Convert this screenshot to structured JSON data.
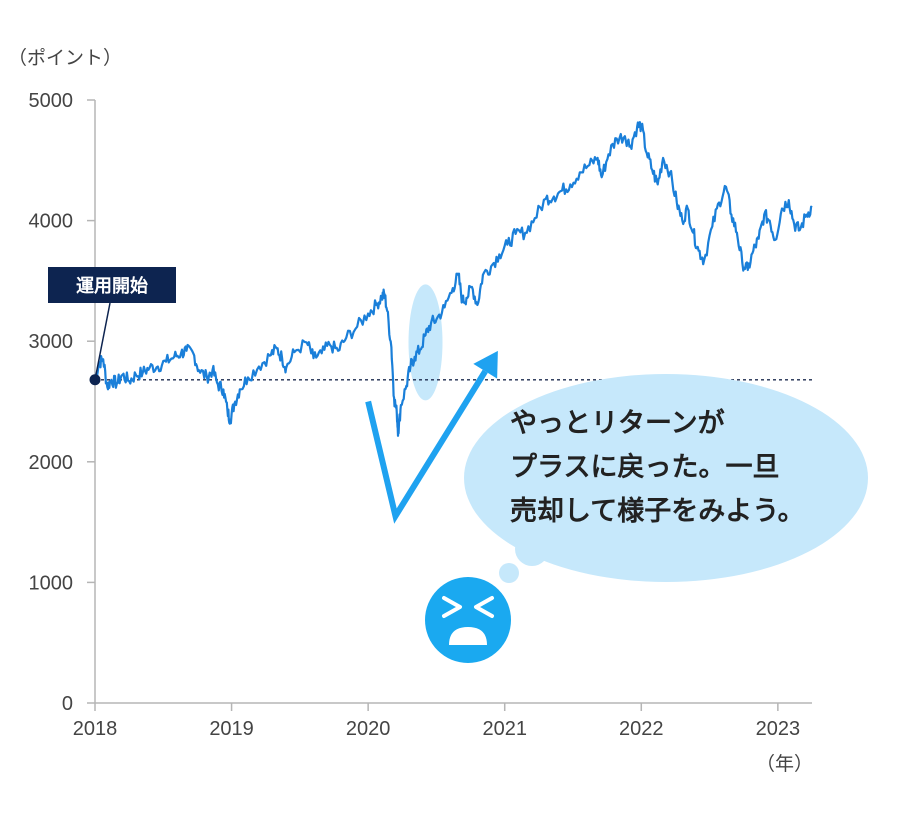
{
  "chart_data": {
    "type": "line",
    "y_unit": "（ポイント）",
    "x_unit": "（年）",
    "ylim": [
      0,
      5000
    ],
    "xlim": [
      2018.0,
      2023.25
    ],
    "y_ticks": [
      "0",
      "1000",
      "2000",
      "3000",
      "4000",
      "5000"
    ],
    "x_ticks": [
      "2018",
      "2019",
      "2020",
      "2021",
      "2022",
      "2023"
    ],
    "grid": false,
    "series": [
      {
        "color": "#1a7fd9",
        "points": [
          [
            2018.0,
            2680
          ],
          [
            2018.03,
            2820
          ],
          [
            2018.06,
            2850
          ],
          [
            2018.09,
            2620
          ],
          [
            2018.12,
            2680
          ],
          [
            2018.16,
            2650
          ],
          [
            2018.2,
            2720
          ],
          [
            2018.25,
            2670
          ],
          [
            2018.3,
            2720
          ],
          [
            2018.35,
            2740
          ],
          [
            2018.4,
            2780
          ],
          [
            2018.46,
            2790
          ],
          [
            2018.52,
            2830
          ],
          [
            2018.58,
            2870
          ],
          [
            2018.63,
            2900
          ],
          [
            2018.67,
            2920
          ],
          [
            2018.72,
            2900
          ],
          [
            2018.76,
            2760
          ],
          [
            2018.82,
            2700
          ],
          [
            2018.86,
            2760
          ],
          [
            2018.9,
            2640
          ],
          [
            2018.94,
            2600
          ],
          [
            2018.97,
            2420
          ],
          [
            2018.99,
            2350
          ],
          [
            2019.02,
            2480
          ],
          [
            2019.06,
            2600
          ],
          [
            2019.12,
            2700
          ],
          [
            2019.2,
            2790
          ],
          [
            2019.28,
            2880
          ],
          [
            2019.33,
            2940
          ],
          [
            2019.37,
            2860
          ],
          [
            2019.4,
            2780
          ],
          [
            2019.46,
            2910
          ],
          [
            2019.55,
            2990
          ],
          [
            2019.6,
            2860
          ],
          [
            2019.66,
            2900
          ],
          [
            2019.72,
            2970
          ],
          [
            2019.78,
            2920
          ],
          [
            2019.84,
            3030
          ],
          [
            2019.92,
            3120
          ],
          [
            2020.0,
            3230
          ],
          [
            2020.06,
            3300
          ],
          [
            2020.1,
            3370
          ],
          [
            2020.12,
            3390
          ],
          [
            2020.14,
            3250
          ],
          [
            2020.17,
            2950
          ],
          [
            2020.19,
            2530
          ],
          [
            2020.21,
            2400
          ],
          [
            2020.22,
            2240
          ],
          [
            2020.24,
            2470
          ],
          [
            2020.28,
            2630
          ],
          [
            2020.31,
            2790
          ],
          [
            2020.34,
            2870
          ],
          [
            2020.38,
            2930
          ],
          [
            2020.42,
            3050
          ],
          [
            2020.46,
            3150
          ],
          [
            2020.5,
            3180
          ],
          [
            2020.56,
            3280
          ],
          [
            2020.62,
            3440
          ],
          [
            2020.66,
            3550
          ],
          [
            2020.69,
            3330
          ],
          [
            2020.72,
            3360
          ],
          [
            2020.76,
            3450
          ],
          [
            2020.8,
            3300
          ],
          [
            2020.84,
            3550
          ],
          [
            2020.9,
            3620
          ],
          [
            2020.96,
            3720
          ],
          [
            2021.02,
            3800
          ],
          [
            2021.08,
            3890
          ],
          [
            2021.15,
            3900
          ],
          [
            2021.22,
            4020
          ],
          [
            2021.3,
            4180
          ],
          [
            2021.36,
            4200
          ],
          [
            2021.42,
            4250
          ],
          [
            2021.48,
            4300
          ],
          [
            2021.55,
            4400
          ],
          [
            2021.62,
            4460
          ],
          [
            2021.68,
            4520
          ],
          [
            2021.71,
            4360
          ],
          [
            2021.76,
            4550
          ],
          [
            2021.82,
            4680
          ],
          [
            2021.88,
            4700
          ],
          [
            2021.92,
            4620
          ],
          [
            2021.97,
            4780
          ],
          [
            2022.0,
            4790
          ],
          [
            2022.04,
            4560
          ],
          [
            2022.08,
            4420
          ],
          [
            2022.12,
            4300
          ],
          [
            2022.16,
            4520
          ],
          [
            2022.21,
            4400
          ],
          [
            2022.26,
            4150
          ],
          [
            2022.3,
            4000
          ],
          [
            2022.34,
            4100
          ],
          [
            2022.38,
            3900
          ],
          [
            2022.42,
            3750
          ],
          [
            2022.46,
            3670
          ],
          [
            2022.52,
            3950
          ],
          [
            2022.57,
            4150
          ],
          [
            2022.62,
            4280
          ],
          [
            2022.66,
            4050
          ],
          [
            2022.7,
            3900
          ],
          [
            2022.74,
            3650
          ],
          [
            2022.78,
            3590
          ],
          [
            2022.82,
            3750
          ],
          [
            2022.86,
            3850
          ],
          [
            2022.9,
            4050
          ],
          [
            2022.94,
            4000
          ],
          [
            2022.98,
            3840
          ],
          [
            2023.03,
            4100
          ],
          [
            2023.08,
            4170
          ],
          [
            2023.12,
            3970
          ],
          [
            2023.16,
            3920
          ],
          [
            2023.21,
            4050
          ],
          [
            2023.25,
            4110
          ]
        ]
      }
    ],
    "baseline": 2680,
    "start_marker": {
      "x": 2018.0,
      "y": 2680,
      "label": "運用開始"
    },
    "check_mark": {
      "start": [
        2020.0,
        2500
      ],
      "bottom": [
        2020.2,
        1550
      ],
      "end": [
        2020.95,
        2920
      ]
    },
    "highlight": {
      "center": [
        2020.42,
        2990
      ]
    },
    "bubble": {
      "lines": [
        "やっとリターンが",
        "プラスに戻った。一旦",
        "売却して様子をみよう。"
      ]
    },
    "face": {
      "expression": "distressed-face-icon"
    }
  },
  "colors": {
    "line": "#1a7fd9",
    "axis": "#b5b5b5",
    "dotted": "#1d2b4f",
    "bubble": "#c6e8fb",
    "check": "#1fa2f0",
    "label_bg": "#0d2450",
    "face": "#1aa9f0"
  }
}
